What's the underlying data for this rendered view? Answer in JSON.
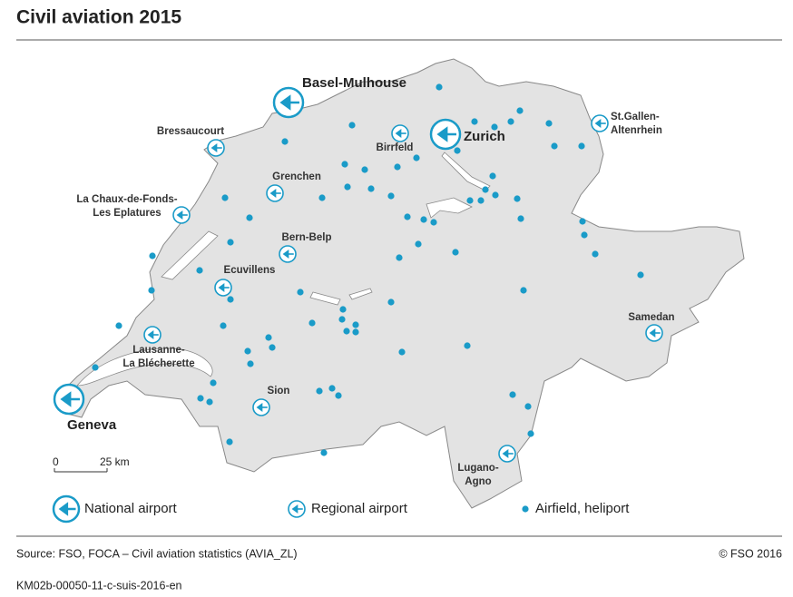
{
  "header": {
    "title": "Civil aviation 2015"
  },
  "national_airports": [
    [
      "Basel-Mulhouse"
    ],
    [
      "Zurich"
    ],
    [
      "Geneva"
    ]
  ],
  "regional_airports": [
    [
      "Bressaucourt"
    ],
    [
      "Birrfeld"
    ],
    [
      "St.Gallen-",
      "Altenrhein"
    ],
    [
      "La Chaux-de-Fonds-",
      "Les Eplatures"
    ],
    [
      "Grenchen"
    ],
    [
      "Bern-Belp"
    ],
    [
      "Ecuvillens"
    ],
    [
      "Lausanne-",
      "La Blécherette"
    ],
    [
      "Sion"
    ],
    [
      "Samedan"
    ],
    [
      "Lugano-",
      "Agno"
    ]
  ],
  "scale": {
    "start": "0",
    "end": "25 km"
  },
  "legend": {
    "national": "National airport",
    "regional": "Regional airport",
    "airfield": "Airfield, heliport"
  },
  "footer": {
    "source": "Source: FSO, FOCA – Civil aviation statistics (AVIA_ZL)",
    "copyright": "© FSO 2016",
    "code": "KM02b-00050-11-c-suis-2016-en"
  }
}
